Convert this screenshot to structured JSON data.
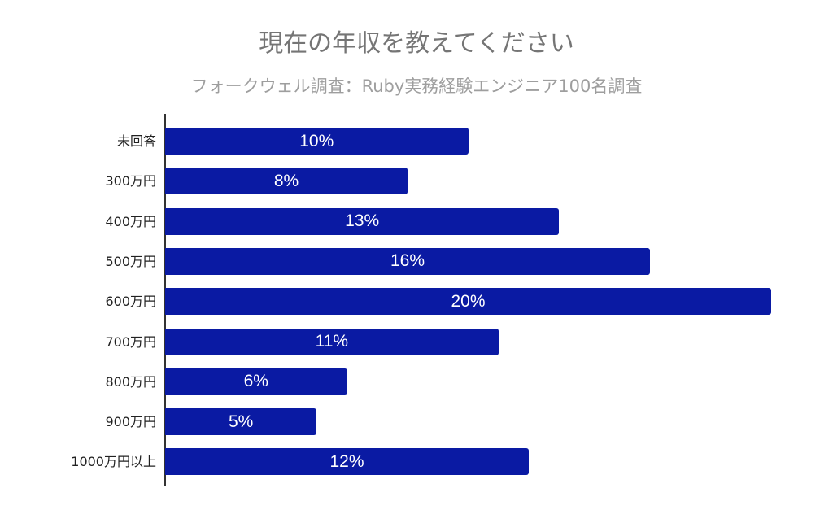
{
  "header": {
    "title": "現在の年収を教えてください",
    "subtitle": "フォークウェル調査：Ruby実務経験エンジニア100名調査"
  },
  "colors": {
    "bar": "#0a1aa3",
    "title": "#757575",
    "subtitle": "#9e9e9e",
    "axis": "#333333"
  },
  "rows": [
    {
      "label": "未回答",
      "value": 10,
      "text": "10%"
    },
    {
      "label": "300万円",
      "value": 8,
      "text": "8%"
    },
    {
      "label": "400万円",
      "value": 13,
      "text": "13%"
    },
    {
      "label": "500万円",
      "value": 16,
      "text": "16%"
    },
    {
      "label": "600万円",
      "value": 20,
      "text": "20%"
    },
    {
      "label": "700万円",
      "value": 11,
      "text": "11%"
    },
    {
      "label": "800万円",
      "value": 6,
      "text": "6%"
    },
    {
      "label": "900万円",
      "value": 5,
      "text": "5%"
    },
    {
      "label": "1000万円以上",
      "value": 12,
      "text": "12%"
    }
  ],
  "chart_data": {
    "type": "bar",
    "orientation": "horizontal",
    "title": "現在の年収を教えてください",
    "subtitle": "フォークウェル調査：Ruby実務経験エンジニア100名調査",
    "categories": [
      "未回答",
      "300万円",
      "400万円",
      "500万円",
      "600万円",
      "700万円",
      "800万円",
      "900万円",
      "1000万円以上"
    ],
    "values": [
      10,
      8,
      13,
      16,
      20,
      11,
      6,
      5,
      12
    ],
    "unit": "%",
    "data_labels": [
      "10%",
      "8%",
      "13%",
      "16%",
      "20%",
      "11%",
      "6%",
      "5%",
      "12%"
    ],
    "xlabel": "",
    "ylabel": "",
    "xlim": [
      0,
      20
    ],
    "grid": false,
    "legend": null
  }
}
